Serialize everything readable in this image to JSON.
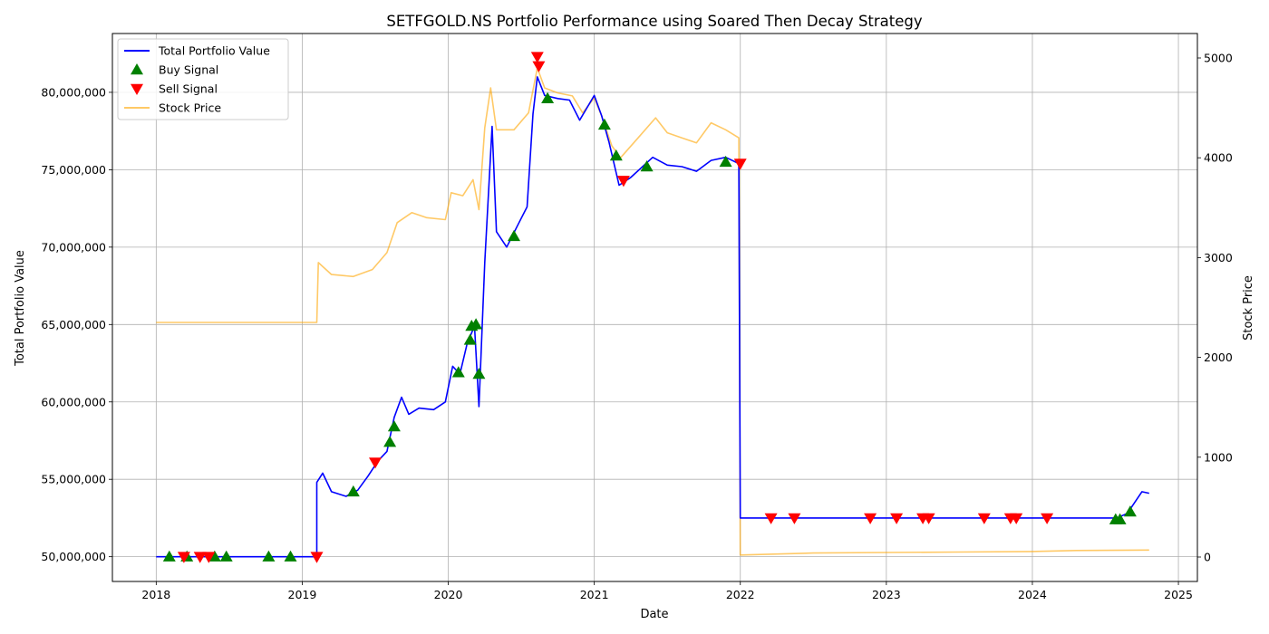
{
  "chart_data": {
    "type": "line",
    "title": "SETFGOLD.NS Portfolio Performance using Soared Then Decay Strategy",
    "xlabel": "Date",
    "ylabel_left": "Total Portfolio Value",
    "ylabel_right": "Stock Price",
    "x_ticks": [
      "2018",
      "2019",
      "2020",
      "2021",
      "2022",
      "2023",
      "2024",
      "2025"
    ],
    "xlim": [
      2017.7,
      2025.13
    ],
    "ylim_left": [
      48400000,
      83800000
    ],
    "ylim_right": [
      -245,
      5245
    ],
    "y_ticks_left": [
      50000000,
      55000000,
      60000000,
      65000000,
      70000000,
      75000000,
      80000000
    ],
    "y_tick_labels_left": [
      "50,000,000",
      "55,000,000",
      "60,000,000",
      "65,000,000",
      "70,000,000",
      "75,000,000",
      "80,000,000"
    ],
    "y_ticks_right": [
      0,
      1000,
      2000,
      3000,
      4000,
      5000
    ],
    "y_tick_labels_right": [
      "0",
      "1000",
      "2000",
      "3000",
      "4000",
      "5000"
    ],
    "grid": true,
    "legend_position": "top-left",
    "legend": [
      {
        "label": "Total Portfolio Value",
        "kind": "line",
        "color": "#0000ff"
      },
      {
        "label": "Buy Signal",
        "kind": "triangle-up",
        "color": "#008000"
      },
      {
        "label": "Sell Signal",
        "kind": "triangle-down",
        "color": "#ff0000"
      },
      {
        "label": "Stock Price",
        "kind": "line",
        "color": "#ffa500"
      }
    ],
    "series": [
      {
        "name": "Total Portfolio Value",
        "axis": "left",
        "color": "#0000ff",
        "points": [
          [
            2018.0,
            50000000
          ],
          [
            2019.1,
            50000000
          ],
          [
            2019.1,
            54800000
          ],
          [
            2019.14,
            55400000
          ],
          [
            2019.2,
            54200000
          ],
          [
            2019.3,
            53900000
          ],
          [
            2019.38,
            54300000
          ],
          [
            2019.45,
            55200000
          ],
          [
            2019.52,
            56200000
          ],
          [
            2019.58,
            56800000
          ],
          [
            2019.63,
            59000000
          ],
          [
            2019.68,
            60300000
          ],
          [
            2019.73,
            59200000
          ],
          [
            2019.8,
            59600000
          ],
          [
            2019.9,
            59500000
          ],
          [
            2019.98,
            60000000
          ],
          [
            2020.03,
            62300000
          ],
          [
            2020.08,
            61800000
          ],
          [
            2020.13,
            63800000
          ],
          [
            2020.18,
            64900000
          ],
          [
            2020.21,
            59700000
          ],
          [
            2020.25,
            69000000
          ],
          [
            2020.3,
            77800000
          ],
          [
            2020.33,
            71000000
          ],
          [
            2020.4,
            70000000
          ],
          [
            2020.48,
            71500000
          ],
          [
            2020.54,
            72600000
          ],
          [
            2020.58,
            78600000
          ],
          [
            2020.61,
            81000000
          ],
          [
            2020.66,
            79800000
          ],
          [
            2020.75,
            79600000
          ],
          [
            2020.83,
            79500000
          ],
          [
            2020.9,
            78200000
          ],
          [
            2021.0,
            79800000
          ],
          [
            2021.05,
            78500000
          ],
          [
            2021.1,
            76800000
          ],
          [
            2021.17,
            74000000
          ],
          [
            2021.25,
            74500000
          ],
          [
            2021.4,
            75800000
          ],
          [
            2021.5,
            75300000
          ],
          [
            2021.6,
            75200000
          ],
          [
            2021.7,
            74900000
          ],
          [
            2021.8,
            75600000
          ],
          [
            2021.9,
            75800000
          ],
          [
            2021.99,
            75400000
          ],
          [
            2022.0,
            52500000
          ],
          [
            2024.58,
            52500000
          ],
          [
            2024.65,
            52800000
          ],
          [
            2024.75,
            54200000
          ],
          [
            2024.8,
            54100000
          ]
        ]
      },
      {
        "name": "Stock Price",
        "axis": "right",
        "color": "#ffa500",
        "points": [
          [
            2018.0,
            2350
          ],
          [
            2019.1,
            2350
          ],
          [
            2019.11,
            2950
          ],
          [
            2019.2,
            2830
          ],
          [
            2019.35,
            2810
          ],
          [
            2019.48,
            2880
          ],
          [
            2019.58,
            3050
          ],
          [
            2019.65,
            3350
          ],
          [
            2019.75,
            3450
          ],
          [
            2019.85,
            3400
          ],
          [
            2019.98,
            3380
          ],
          [
            2020.02,
            3650
          ],
          [
            2020.1,
            3620
          ],
          [
            2020.17,
            3780
          ],
          [
            2020.21,
            3480
          ],
          [
            2020.25,
            4300
          ],
          [
            2020.29,
            4700
          ],
          [
            2020.33,
            4280
          ],
          [
            2020.45,
            4280
          ],
          [
            2020.55,
            4450
          ],
          [
            2020.61,
            4900
          ],
          [
            2020.66,
            4700
          ],
          [
            2020.75,
            4650
          ],
          [
            2020.85,
            4620
          ],
          [
            2020.92,
            4450
          ],
          [
            2021.0,
            4600
          ],
          [
            2021.05,
            4420
          ],
          [
            2021.12,
            4120
          ],
          [
            2021.18,
            4000
          ],
          [
            2021.3,
            4200
          ],
          [
            2021.42,
            4400
          ],
          [
            2021.5,
            4250
          ],
          [
            2021.6,
            4200
          ],
          [
            2021.7,
            4150
          ],
          [
            2021.8,
            4350
          ],
          [
            2021.9,
            4280
          ],
          [
            2021.99,
            4200
          ],
          [
            2022.0,
            20
          ],
          [
            2022.5,
            40
          ],
          [
            2023.0,
            45
          ],
          [
            2023.5,
            50
          ],
          [
            2024.0,
            55
          ],
          [
            2024.3,
            65
          ],
          [
            2024.8,
            70
          ]
        ]
      }
    ],
    "buy_signals": [
      [
        2018.09,
        50000000
      ],
      [
        2018.21,
        50000000
      ],
      [
        2018.4,
        50000000
      ],
      [
        2018.48,
        50000000
      ],
      [
        2018.77,
        50000000
      ],
      [
        2018.92,
        50000000
      ],
      [
        2019.35,
        54200000
      ],
      [
        2019.6,
        57400000
      ],
      [
        2019.63,
        58400000
      ],
      [
        2020.07,
        61900000
      ],
      [
        2020.15,
        64000000
      ],
      [
        2020.16,
        64900000
      ],
      [
        2020.19,
        65000000
      ],
      [
        2020.21,
        61800000
      ],
      [
        2020.45,
        70700000
      ],
      [
        2020.68,
        79600000
      ],
      [
        2021.07,
        77900000
      ],
      [
        2021.15,
        75900000
      ],
      [
        2021.36,
        75200000
      ],
      [
        2021.9,
        75500000
      ],
      [
        2024.57,
        52400000
      ],
      [
        2024.6,
        52400000
      ],
      [
        2024.67,
        52900000
      ]
    ],
    "sell_signals": [
      [
        2018.19,
        50000000
      ],
      [
        2018.3,
        50000000
      ],
      [
        2018.36,
        50000000
      ],
      [
        2019.1,
        50000000
      ],
      [
        2019.5,
        56100000
      ],
      [
        2020.61,
        82300000
      ],
      [
        2020.62,
        81700000
      ],
      [
        2021.2,
        74300000
      ],
      [
        2022.0,
        75400000
      ],
      [
        2022.21,
        52500000
      ],
      [
        2022.37,
        52500000
      ],
      [
        2022.89,
        52500000
      ],
      [
        2023.07,
        52500000
      ],
      [
        2023.25,
        52500000
      ],
      [
        2023.29,
        52500000
      ],
      [
        2023.67,
        52500000
      ],
      [
        2023.85,
        52500000
      ],
      [
        2023.89,
        52500000
      ],
      [
        2024.1,
        52500000
      ]
    ]
  }
}
